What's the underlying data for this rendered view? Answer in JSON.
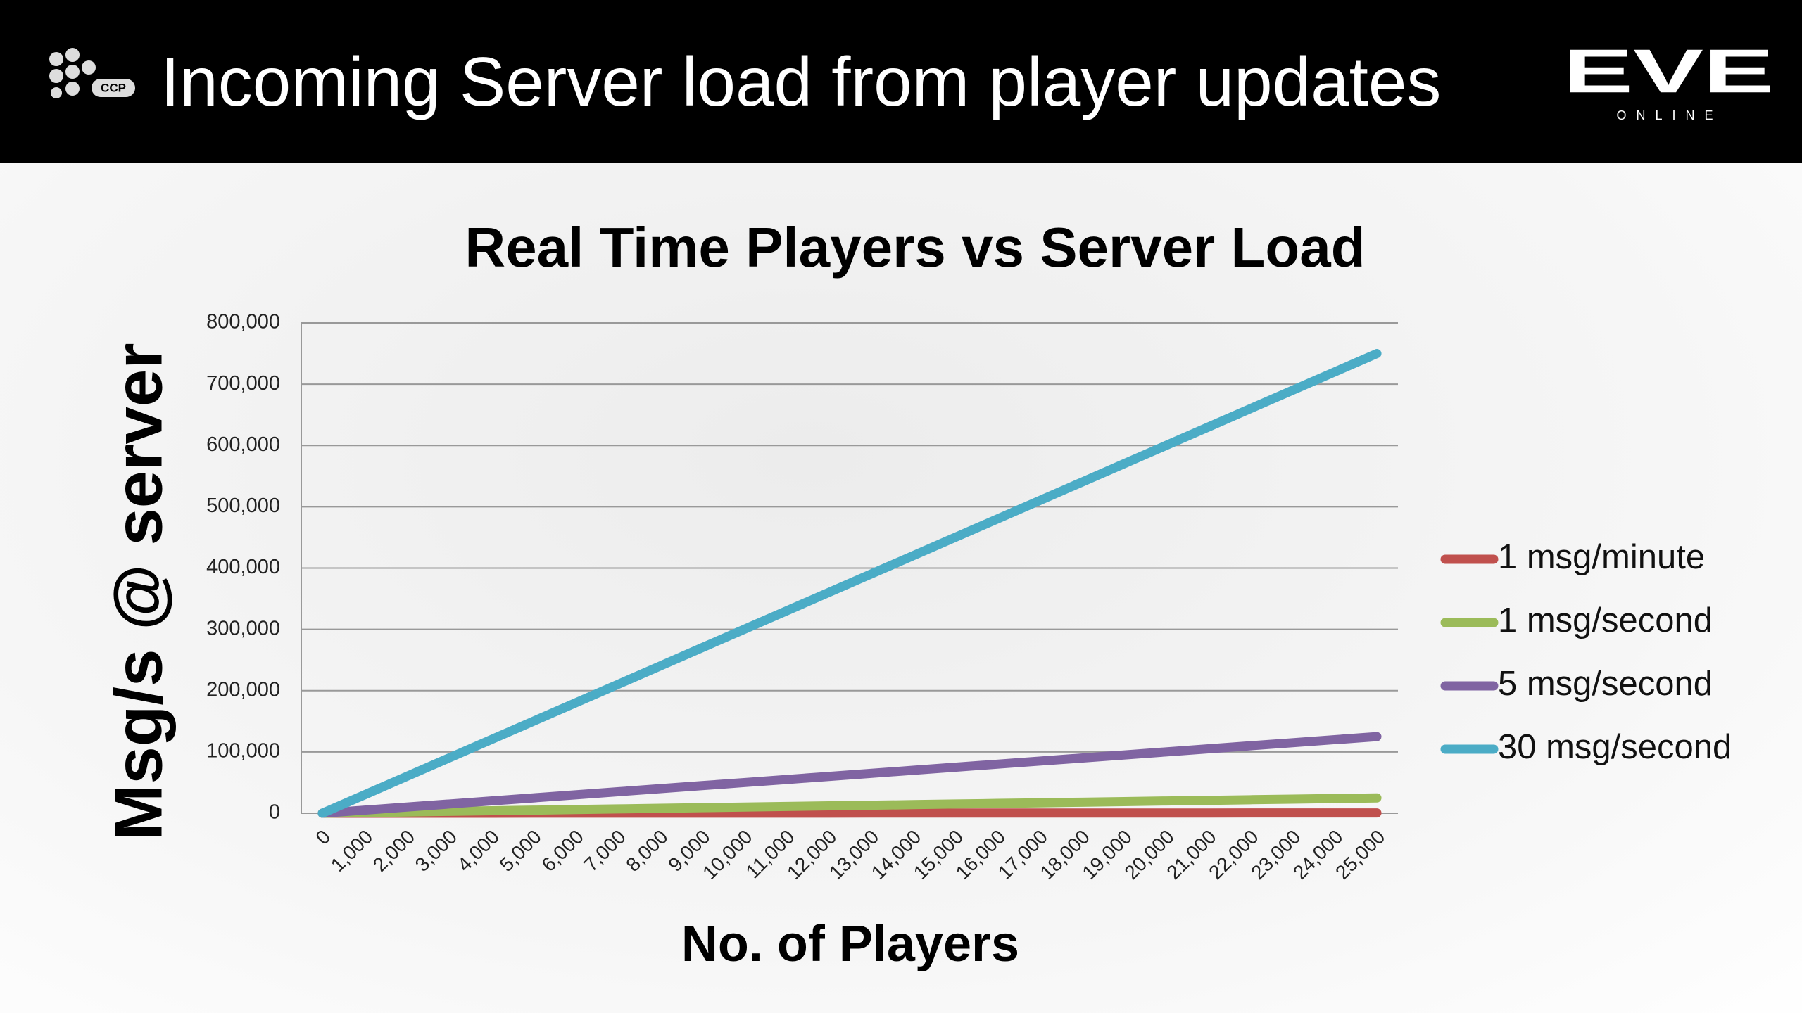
{
  "header": {
    "title": "Incoming Server load from player updates",
    "logo_left": "CCP",
    "logo_right": "EVE",
    "logo_right_sub": "ONLINE"
  },
  "chart_data": {
    "type": "line",
    "title": "Real Time Players vs Server Load",
    "x_label": "No. of Players",
    "y_label": "Msg/s @ server",
    "categories": [
      "0",
      "1,000",
      "2,000",
      "3,000",
      "4,000",
      "5,000",
      "6,000",
      "7,000",
      "8,000",
      "9,000",
      "10,000",
      "11,000",
      "12,000",
      "13,000",
      "14,000",
      "15,000",
      "16,000",
      "17,000",
      "18,000",
      "19,000",
      "20,000",
      "21,000",
      "22,000",
      "23,000",
      "24,000",
      "25,000"
    ],
    "series": [
      {
        "name": "1 msg/minute",
        "color": "#c0504d",
        "values": [
          0,
          16.7,
          33.3,
          50,
          66.7,
          83.3,
          100,
          116.7,
          133.3,
          150,
          166.7,
          183.3,
          200,
          216.7,
          233.3,
          250,
          266.7,
          283.3,
          300,
          316.7,
          333.3,
          350,
          366.7,
          383.3,
          400,
          416.7
        ]
      },
      {
        "name": "1 msg/second",
        "color": "#9bbb59",
        "values": [
          0,
          1000,
          2000,
          3000,
          4000,
          5000,
          6000,
          7000,
          8000,
          9000,
          10000,
          11000,
          12000,
          13000,
          14000,
          15000,
          16000,
          17000,
          18000,
          19000,
          20000,
          21000,
          22000,
          23000,
          24000,
          25000
        ]
      },
      {
        "name": "5 msg/second",
        "color": "#8064a2",
        "values": [
          0,
          5000,
          10000,
          15000,
          20000,
          25000,
          30000,
          35000,
          40000,
          45000,
          50000,
          55000,
          60000,
          65000,
          70000,
          75000,
          80000,
          85000,
          90000,
          95000,
          100000,
          105000,
          110000,
          115000,
          120000,
          125000
        ]
      },
      {
        "name": "30 msg/second",
        "color": "#4bacc6",
        "values": [
          0,
          30000,
          60000,
          90000,
          120000,
          150000,
          180000,
          210000,
          240000,
          270000,
          300000,
          330000,
          360000,
          390000,
          420000,
          450000,
          480000,
          510000,
          540000,
          570000,
          600000,
          630000,
          660000,
          690000,
          720000,
          750000
        ]
      }
    ],
    "ylim": [
      0,
      800000
    ],
    "yticks": [
      0,
      {
        "value": 100000,
        "label": "100,000"
      },
      {
        "value": 200000,
        "label": "200,000"
      },
      {
        "value": 300000,
        "label": "300,000"
      },
      {
        "value": 400000,
        "label": "400,000"
      },
      {
        "value": 500000,
        "label": "500,000"
      },
      {
        "value": 600000,
        "label": "600,000"
      },
      {
        "value": 700000,
        "label": "700,000"
      },
      {
        "value": 800000,
        "label": "800,000"
      }
    ],
    "grid": true,
    "legend": "right"
  }
}
